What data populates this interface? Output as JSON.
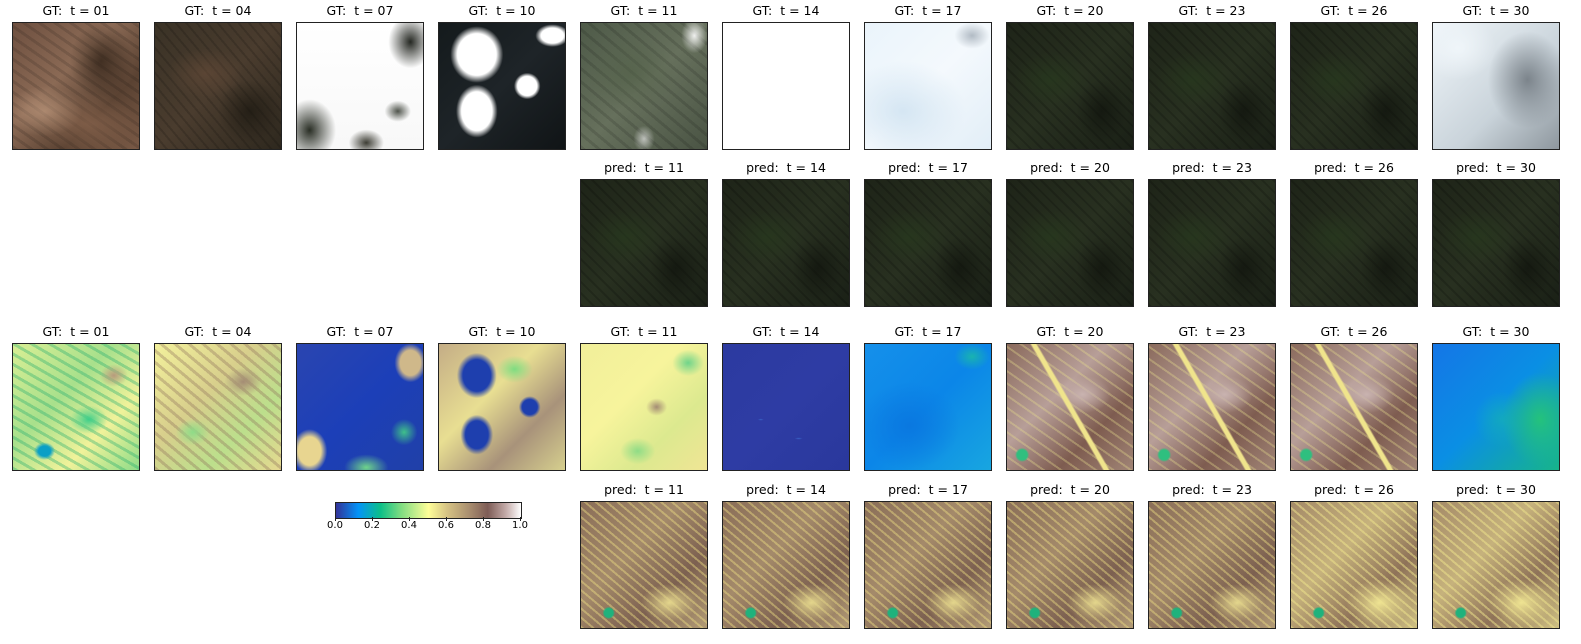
{
  "rgb_rows": {
    "gt": [
      {
        "label": "GT:  t = 01",
        "style": "rgb-brown"
      },
      {
        "label": "GT:  t = 04",
        "style": "rgb-darkbrown"
      },
      {
        "label": "GT:  t = 07",
        "style": "rgb-cloud-white"
      },
      {
        "label": "GT:  t = 10",
        "style": "rgb-cloud-dark"
      },
      {
        "label": "GT:  t = 11",
        "style": "rgb-green-haze"
      },
      {
        "label": "GT:  t = 14",
        "style": "rgb-blank-white"
      },
      {
        "label": "GT:  t = 17",
        "style": "rgb-haze-blue"
      },
      {
        "label": "GT:  t = 20",
        "style": "rgb-dark-green"
      },
      {
        "label": "GT:  t = 23",
        "style": "rgb-dark-green"
      },
      {
        "label": "GT:  t = 26",
        "style": "rgb-dark-green"
      },
      {
        "label": "GT:  t = 30",
        "style": "rgb-cloud-grey"
      }
    ],
    "pred": [
      {
        "label": "pred:  t = 11",
        "style": "rgb-dark-green"
      },
      {
        "label": "pred:  t = 14",
        "style": "rgb-dark-green"
      },
      {
        "label": "pred:  t = 17",
        "style": "rgb-dark-green"
      },
      {
        "label": "pred:  t = 20",
        "style": "rgb-dark-green"
      },
      {
        "label": "pred:  t = 23",
        "style": "rgb-dark-green"
      },
      {
        "label": "pred:  t = 26",
        "style": "rgb-dark-green"
      },
      {
        "label": "pred:  t = 30",
        "style": "rgb-dark-green"
      }
    ]
  },
  "ndvi_rows": {
    "gt": [
      {
        "label": "GT:  t = 01",
        "style": "ndvi-green-yellow"
      },
      {
        "label": "GT:  t = 04",
        "style": "ndvi-yellow-brown"
      },
      {
        "label": "GT:  t = 07",
        "style": "ndvi-blue-clouds"
      },
      {
        "label": "GT:  t = 10",
        "style": "ndvi-blue-patches"
      },
      {
        "label": "GT:  t = 11",
        "style": "ndvi-yellow-green"
      },
      {
        "label": "GT:  t = 14",
        "style": "ndvi-deep-blue"
      },
      {
        "label": "GT:  t = 17",
        "style": "ndvi-bright-blue"
      },
      {
        "label": "GT:  t = 20",
        "style": "ndvi-brown-grey"
      },
      {
        "label": "GT:  t = 23",
        "style": "ndvi-brown-grey"
      },
      {
        "label": "GT:  t = 26",
        "style": "ndvi-brown-grey"
      },
      {
        "label": "GT:  t = 30",
        "style": "ndvi-blue-green"
      }
    ],
    "pred": [
      {
        "label": "pred:  t = 11",
        "style": "ndvi-pred"
      },
      {
        "label": "pred:  t = 14",
        "style": "ndvi-pred"
      },
      {
        "label": "pred:  t = 17",
        "style": "ndvi-pred"
      },
      {
        "label": "pred:  t = 20",
        "style": "ndvi-pred"
      },
      {
        "label": "pred:  t = 23",
        "style": "ndvi-pred"
      },
      {
        "label": "pred:  t = 26",
        "style": "ndvi-pred-yellow"
      },
      {
        "label": "pred:  t = 30",
        "style": "ndvi-pred-yellow"
      }
    ]
  },
  "colorbar": {
    "ticks": [
      "0.0",
      "0.2",
      "0.4",
      "0.6",
      "0.8",
      "1.0"
    ]
  }
}
